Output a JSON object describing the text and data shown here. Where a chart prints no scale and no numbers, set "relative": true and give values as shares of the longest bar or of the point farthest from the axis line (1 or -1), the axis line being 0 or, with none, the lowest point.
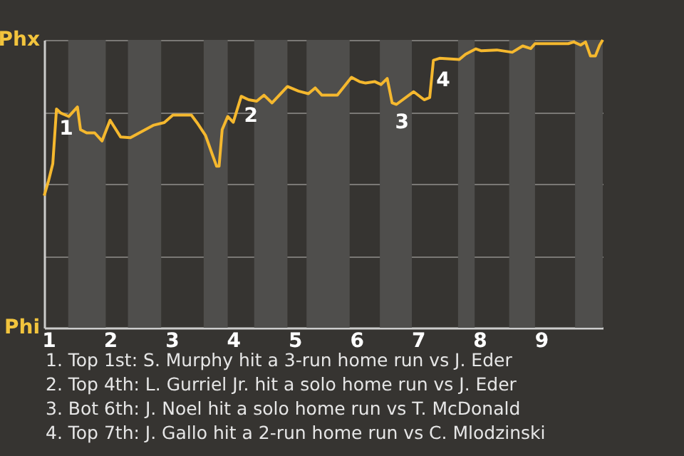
{
  "chart_data": {
    "type": "line",
    "x": [
      0.93,
      1,
      1.07,
      1.13,
      1.2,
      1.33,
      1.47,
      1.52,
      1.62,
      1.75,
      1.87,
      2,
      2.17,
      2.33,
      2.71,
      2.88,
      3.02,
      3.32,
      3.41,
      3.55,
      3.66,
      3.73,
      3.77,
      3.82,
      3.91,
      4,
      4.13,
      4.25,
      4.38,
      4.5,
      4.63,
      4.88,
      5.06,
      5.22,
      5.33,
      5.44,
      5.69,
      5.92,
      6.05,
      6.15,
      6.3,
      6.4,
      6.5,
      6.58,
      6.65,
      6.93,
      7.1,
      7.19,
      7.25,
      7.35,
      7.67,
      7.77,
      7.94,
      8.03,
      8.28,
      8.53,
      8.7,
      8.83,
      8.9,
      9.44,
      9.53,
      9.64,
      9.72,
      9.8,
      9.88,
      9.95,
      10
    ],
    "series": [
      {
        "color": "#f5b82e",
        "values": [
          0.459,
          0.51,
          0.57,
          0.76,
          0.746,
          0.734,
          0.767,
          0.688,
          0.677,
          0.677,
          0.649,
          0.721,
          0.663,
          0.66,
          0.704,
          0.713,
          0.739,
          0.739,
          0.713,
          0.668,
          0.602,
          0.561,
          0.561,
          0.688,
          0.734,
          0.714,
          0.804,
          0.792,
          0.787,
          0.808,
          0.781,
          0.838,
          0.822,
          0.813,
          0.833,
          0.808,
          0.808,
          0.87,
          0.855,
          0.85,
          0.855,
          0.845,
          0.866,
          0.781,
          0.776,
          0.82,
          0.792,
          0.8,
          0.929,
          0.936,
          0.932,
          0.95,
          0.969,
          0.962,
          0.965,
          0.957,
          0.979,
          0.97,
          0.987,
          0.987,
          0.993,
          0.982,
          0.993,
          0.944,
          0.944,
          0.982,
          1
        ]
      }
    ],
    "relative": true,
    "xlim": [
      0.93,
      10
    ],
    "xticks": [
      1,
      2,
      3,
      4,
      5,
      6,
      7,
      8,
      9
    ],
    "grid": "y",
    "marker": "none",
    "line_style": "solid",
    "bands": [
      {
        "axis": "x",
        "from": 1.32,
        "to": 1.93,
        "color": "#4f4e4c"
      },
      {
        "axis": "x",
        "from": 2.29,
        "to": 2.83,
        "color": "#4f4e4c"
      },
      {
        "axis": "x",
        "from": 3.52,
        "to": 3.91,
        "color": "#4f4e4c"
      },
      {
        "axis": "x",
        "from": 4.34,
        "to": 4.88,
        "color": "#4f4e4c"
      },
      {
        "axis": "x",
        "from": 5.19,
        "to": 5.89,
        "color": "#4f4e4c"
      },
      {
        "axis": "x",
        "from": 6.38,
        "to": 6.9,
        "color": "#4f4e4c"
      },
      {
        "axis": "x",
        "from": 7.65,
        "to": 7.92,
        "color": "#4f4e4c"
      },
      {
        "axis": "x",
        "from": 8.48,
        "to": 8.9,
        "color": "#4f4e4c"
      },
      {
        "axis": "x",
        "from": 9.55,
        "to": 10,
        "color": "#4f4e4c"
      }
    ],
    "annotations": [
      "Phx",
      "Phi",
      {
        "text": "1",
        "x": 1.13,
        "y": 0.76
      },
      {
        "text": "2",
        "x": 4.13,
        "y": 0.804
      },
      {
        "text": "3",
        "x": 6.58,
        "y": 0.781
      },
      {
        "text": "4",
        "x": 7.25,
        "y": 0.929
      },
      "1. Top 1st: S. Murphy hit a 3-run home run vs J. Eder",
      "2. Top 4th: L. Gurriel Jr. hit a solo home run vs J. Eder",
      "3. Bot 6th: J. Noel hit a solo home run vs T. McDonald",
      "4. Top 7th: J. Gallo hit a 2-run home run vs C. Mlodzinski"
    ]
  }
}
